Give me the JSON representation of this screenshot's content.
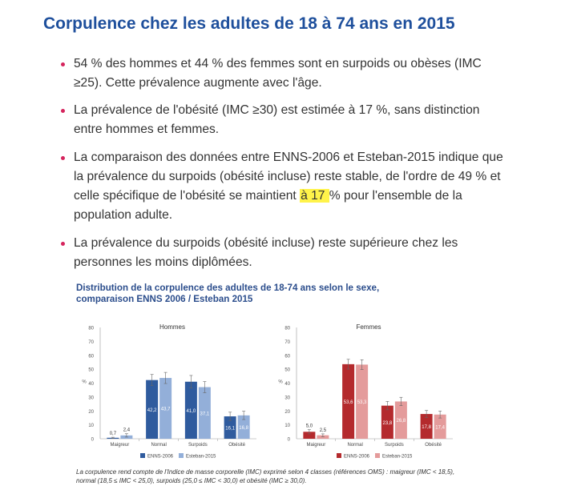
{
  "page": {
    "title": "Corpulence chez les adultes de 18 à 74 ans en 2015"
  },
  "bullets": [
    {
      "text": "54 % des hommes et 44 % des femmes sont en surpoids ou obèses (IMC ≥25). Cette prévalence augmente avec l'âge."
    },
    {
      "text": "La prévalence de l'obésité (IMC ≥30) est estimée à 17 %, sans distinction entre hommes et femmes."
    },
    {
      "text_before": "La comparaison des données entre ENNS-2006 et Esteban-2015 indique que la prévalence du surpoids (obésité incluse) reste stable, de l'ordre de 49 % et celle spécifique de l'obésité se maintient ",
      "highlight": "à 17 ",
      "text_after": "% pour l'ensemble de la population adulte."
    },
    {
      "text": "La prévalence du surpoids (obésité incluse) reste supérieure chez les personnes les moins diplômées."
    }
  ],
  "figure": {
    "title_line1": "Distribution de la corpulence des adultes de 18-74 ans selon le sexe,",
    "title_line2": "comparaison ENNS 2006 / Esteban 2015",
    "note_line1": "La corpulence rend compte de l'Indice de masse corporelle (IMC) exprimé selon 4 classes (références OMS) : maigreur (IMC < 18,5),",
    "note_line2": "normal (18,5 ≤ IMC < 25,0), surpoids (25,0 ≤ IMC < 30,0) et obésité (IMC ≥ 30,0)."
  },
  "colors": {
    "title": "#1e4f9c",
    "bullet": "#d5245d",
    "highlight": "#fff34a",
    "men_2006": "#2f5b9e",
    "men_2015": "#93afd9",
    "women_2006": "#b42a2d",
    "women_2015": "#e49b9b"
  },
  "chart_data": [
    {
      "type": "bar",
      "title": "Hommes",
      "ylabel": "%",
      "ylim": [
        0,
        80
      ],
      "yticks": [
        "0",
        "10",
        "20",
        "30",
        "40",
        "50",
        "60",
        "70",
        "80"
      ],
      "categories": [
        "Maigreur",
        "Normal",
        "Surpoids",
        "Obésité"
      ],
      "series": [
        {
          "name": "ENNS-2006",
          "values": [
            0.7,
            42.2,
            41.0,
            16.1
          ],
          "labels": [
            "0,7",
            "42,2",
            "41,0",
            "16,1"
          ],
          "ci": [
            0.4,
            4.0,
            4.5,
            3.0
          ]
        },
        {
          "name": "Esteban-2015",
          "values": [
            2.4,
            43.7,
            37.1,
            16.8
          ],
          "labels": [
            "2,4",
            "43,7",
            "37,1",
            "16,8"
          ],
          "ci": [
            1.2,
            4.0,
            4.0,
            3.0
          ]
        }
      ],
      "legend": "bottom",
      "grid": false
    },
    {
      "type": "bar",
      "title": "Femmes",
      "ylabel": "%",
      "ylim": [
        0,
        80
      ],
      "yticks": [
        "0",
        "10",
        "20",
        "30",
        "40",
        "50",
        "60",
        "70",
        "80"
      ],
      "categories": [
        "Maigreur",
        "Normal",
        "Surpoids",
        "Obésité"
      ],
      "series": [
        {
          "name": "ENNS-2006",
          "values": [
            5.0,
            53.6,
            23.8,
            17.8
          ],
          "labels": [
            "5,0",
            "53,6",
            "23,8",
            "17,8"
          ],
          "ci": [
            1.5,
            3.5,
            3.0,
            2.5
          ]
        },
        {
          "name": "Esteban-2015",
          "values": [
            2.5,
            53.3,
            26.8,
            17.4
          ],
          "labels": [
            "2,5",
            "53,3",
            "26,8",
            "17,4"
          ],
          "ci": [
            1.0,
            3.5,
            3.0,
            2.5
          ]
        }
      ],
      "legend": "bottom",
      "grid": false
    }
  ]
}
